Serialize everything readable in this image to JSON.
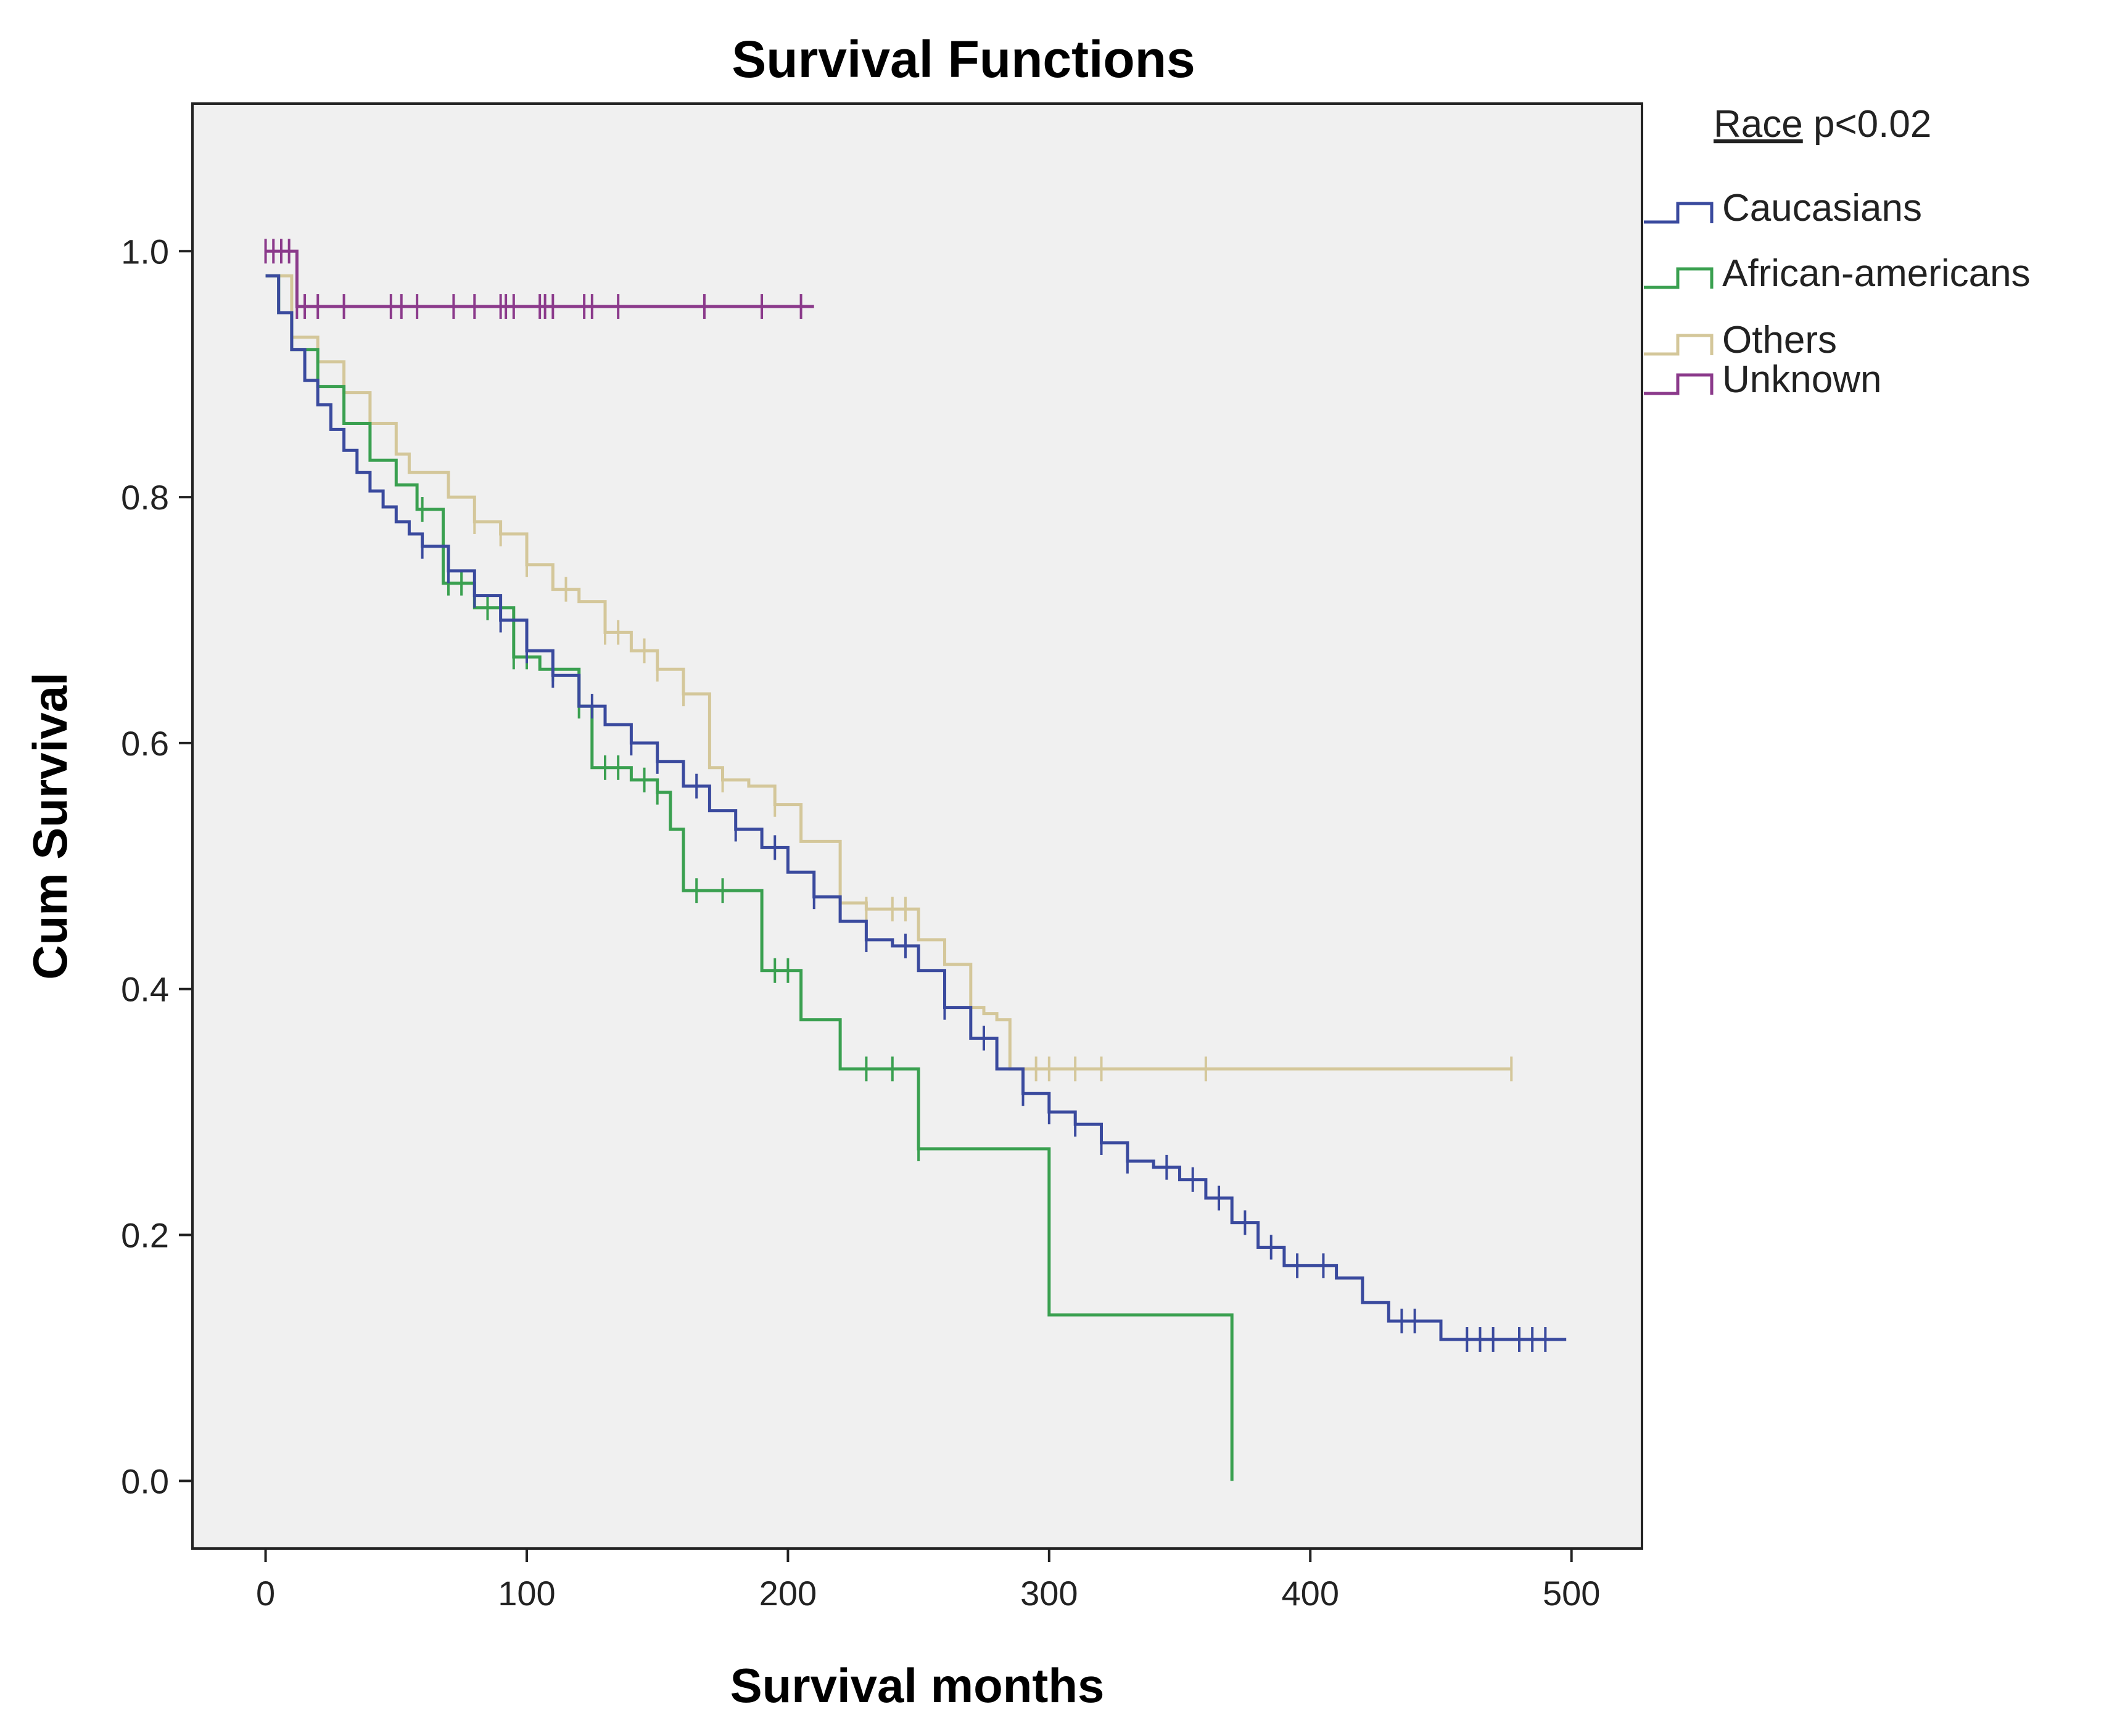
{
  "chart_data": {
    "type": "line",
    "subtype": "kaplan-meier step",
    "title": "Survival Functions",
    "xlabel": "Survival months",
    "ylabel": "Cum Survival",
    "xlim": [
      -28,
      527
    ],
    "ylim": [
      -0.055,
      1.12
    ],
    "xticks": [
      0,
      100,
      200,
      300,
      400,
      500
    ],
    "yticks": [
      0.0,
      0.2,
      0.4,
      0.6,
      0.8,
      1.0
    ],
    "xtick_labels": [
      "0",
      "100",
      "200",
      "300",
      "400",
      "500"
    ],
    "ytick_labels": [
      "0.0",
      "0.2",
      "0.4",
      "0.6",
      "0.8",
      "1.0"
    ],
    "grid": false,
    "background": "#f0f0f0",
    "legend": {
      "placement": "right-outside",
      "title_underlined": "Race",
      "title_suffix": " p<0.02"
    },
    "series": [
      {
        "name": "Caucasians",
        "color": "#3a4a9e",
        "x": [
          0,
          5,
          10,
          15,
          20,
          25,
          30,
          35,
          40,
          45,
          50,
          55,
          60,
          70,
          80,
          90,
          100,
          110,
          120,
          130,
          140,
          150,
          160,
          170,
          180,
          190,
          200,
          210,
          220,
          230,
          240,
          250,
          260,
          270,
          280,
          290,
          300,
          310,
          320,
          330,
          340,
          350,
          360,
          370,
          380,
          390,
          400,
          410,
          420,
          430,
          440,
          450,
          460,
          470,
          480,
          490,
          498
        ],
        "y": [
          0.98,
          0.95,
          0.92,
          0.895,
          0.875,
          0.855,
          0.838,
          0.82,
          0.805,
          0.792,
          0.78,
          0.77,
          0.76,
          0.74,
          0.72,
          0.7,
          0.675,
          0.655,
          0.63,
          0.615,
          0.6,
          0.585,
          0.565,
          0.545,
          0.53,
          0.515,
          0.495,
          0.475,
          0.455,
          0.44,
          0.435,
          0.415,
          0.385,
          0.36,
          0.335,
          0.315,
          0.3,
          0.29,
          0.275,
          0.26,
          0.255,
          0.245,
          0.23,
          0.21,
          0.19,
          0.175,
          0.175,
          0.165,
          0.145,
          0.13,
          0.13,
          0.115,
          0.115,
          0.115,
          0.115,
          0.115,
          0.115
        ],
        "censor_x": [
          60,
          70,
          80,
          90,
          100,
          110,
          125,
          140,
          150,
          165,
          180,
          195,
          210,
          230,
          245,
          260,
          275,
          290,
          300,
          310,
          320,
          330,
          345,
          355,
          365,
          375,
          385,
          395,
          405,
          435,
          440,
          460,
          465,
          470,
          480,
          485,
          490
        ]
      },
      {
        "name": "African-americans",
        "color": "#3aa050",
        "x": [
          0,
          5,
          10,
          20,
          30,
          40,
          50,
          58,
          68,
          80,
          95,
          105,
          115,
          120,
          125,
          140,
          150,
          155,
          160,
          170,
          185,
          190,
          200,
          205,
          220,
          235,
          245,
          250,
          295,
          300,
          370,
          370
        ],
        "y": [
          0.98,
          0.95,
          0.92,
          0.89,
          0.86,
          0.83,
          0.81,
          0.79,
          0.73,
          0.71,
          0.67,
          0.66,
          0.66,
          0.63,
          0.58,
          0.57,
          0.56,
          0.53,
          0.48,
          0.48,
          0.48,
          0.415,
          0.415,
          0.375,
          0.335,
          0.335,
          0.335,
          0.27,
          0.27,
          0.135,
          0.135,
          0.0
        ],
        "censor_x": [
          60,
          70,
          75,
          85,
          95,
          100,
          110,
          120,
          130,
          135,
          145,
          150,
          165,
          175,
          195,
          200,
          230,
          240,
          250
        ]
      },
      {
        "name": "Others",
        "color": "#d4c79a",
        "x": [
          0,
          10,
          20,
          30,
          40,
          50,
          55,
          70,
          80,
          90,
          100,
          110,
          120,
          130,
          140,
          150,
          160,
          170,
          175,
          185,
          195,
          205,
          220,
          230,
          245,
          250,
          260,
          270,
          275,
          280,
          285,
          290,
          300,
          320,
          360,
          400,
          477
        ],
        "y": [
          0.98,
          0.93,
          0.91,
          0.885,
          0.86,
          0.835,
          0.82,
          0.8,
          0.78,
          0.77,
          0.745,
          0.725,
          0.715,
          0.69,
          0.675,
          0.66,
          0.64,
          0.58,
          0.57,
          0.565,
          0.55,
          0.52,
          0.47,
          0.465,
          0.465,
          0.44,
          0.42,
          0.385,
          0.38,
          0.375,
          0.335,
          0.335,
          0.335,
          0.335,
          0.335,
          0.335,
          0.335
        ],
        "censor_x": [
          80,
          90,
          100,
          115,
          130,
          135,
          145,
          150,
          160,
          175,
          195,
          230,
          240,
          245,
          270,
          295,
          300,
          310,
          320,
          360,
          477
        ]
      },
      {
        "name": "Unknown",
        "color": "#8b3a8b",
        "x": [
          0,
          12,
          12,
          210
        ],
        "y": [
          1.0,
          1.0,
          0.955,
          0.955
        ],
        "censor_x": [
          0,
          3,
          6,
          9,
          12,
          15,
          20,
          30,
          48,
          52,
          58,
          72,
          80,
          90,
          92,
          95,
          105,
          107,
          110,
          122,
          125,
          135,
          168,
          190,
          205
        ]
      }
    ]
  }
}
